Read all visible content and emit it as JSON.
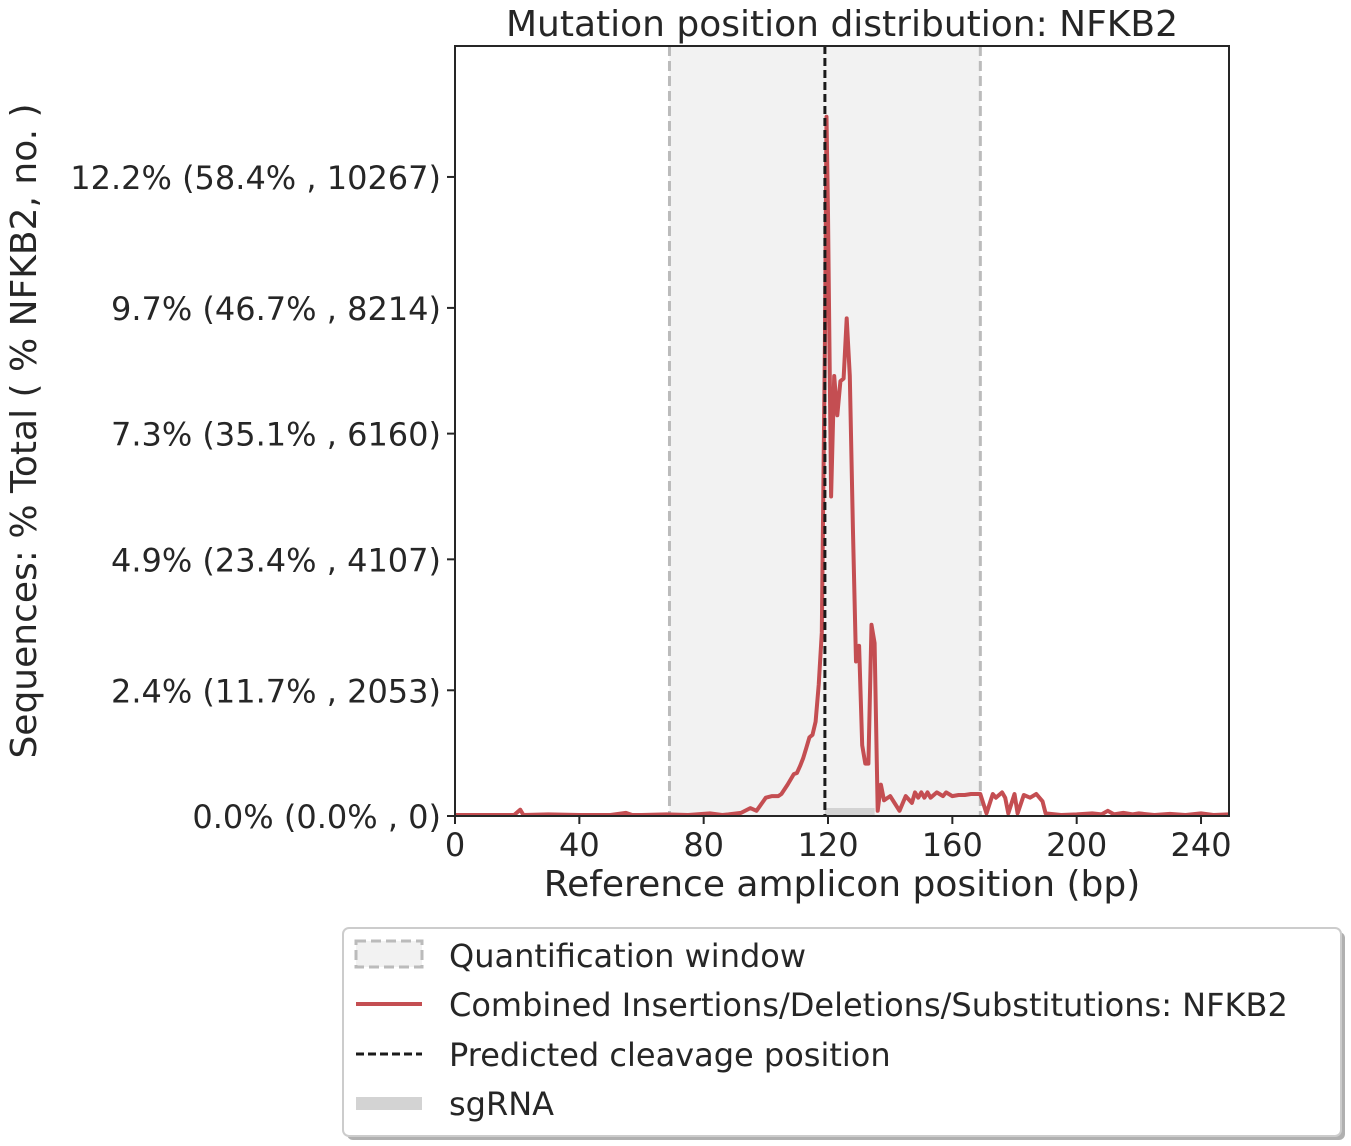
{
  "chart_data": {
    "type": "line",
    "title": "Mutation position distribution: NFKB2",
    "xlabel": "Reference amplicon position (bp)",
    "ylabel": "Sequences: % Total ( % NFKB2, no. )",
    "xlim": [
      0,
      249
    ],
    "ylim": [
      0,
      14.7
    ],
    "xticks": [
      0,
      40,
      80,
      120,
      160,
      200,
      240
    ],
    "yticks": [
      {
        "value": 0.0,
        "label": "0.0% (0.0% , 0)"
      },
      {
        "value": 2.4,
        "label": "2.4% (11.7% , 2053)"
      },
      {
        "value": 4.9,
        "label": "4.9% (23.4% , 4107)"
      },
      {
        "value": 7.3,
        "label": "7.3% (35.1% , 6160)"
      },
      {
        "value": 9.7,
        "label": "9.7% (46.7% , 8214)"
      },
      {
        "value": 12.2,
        "label": "12.2% (58.4% , 10267)"
      }
    ],
    "quantification_window": [
      69,
      169
    ],
    "cleavage_position": 119,
    "sgrna": [
      119,
      135
    ],
    "series": [
      {
        "name": "Combined Insertions/Deletions/Substitutions: NFKB2",
        "color": "#c44e52",
        "points": [
          [
            0,
            0.02
          ],
          [
            10,
            0.02
          ],
          [
            19,
            0.02
          ],
          [
            21,
            0.12
          ],
          [
            22,
            0.02
          ],
          [
            30,
            0.03
          ],
          [
            40,
            0.02
          ],
          [
            50,
            0.02
          ],
          [
            55,
            0.06
          ],
          [
            57,
            0.02
          ],
          [
            60,
            0.02
          ],
          [
            68,
            0.03
          ],
          [
            75,
            0.02
          ],
          [
            82,
            0.05
          ],
          [
            86,
            0.02
          ],
          [
            88,
            0.03
          ],
          [
            92,
            0.06
          ],
          [
            95,
            0.15
          ],
          [
            97,
            0.1
          ],
          [
            100,
            0.35
          ],
          [
            102,
            0.38
          ],
          [
            104,
            0.38
          ],
          [
            105,
            0.42
          ],
          [
            107,
            0.6
          ],
          [
            109,
            0.8
          ],
          [
            110,
            0.82
          ],
          [
            111,
            0.95
          ],
          [
            112,
            1.1
          ],
          [
            113,
            1.3
          ],
          [
            114,
            1.5
          ],
          [
            115,
            1.55
          ],
          [
            116,
            1.8
          ],
          [
            117,
            2.5
          ],
          [
            118,
            3.5
          ],
          [
            119,
            9.0
          ],
          [
            119.5,
            13.35
          ],
          [
            120,
            11.5
          ],
          [
            121,
            6.1
          ],
          [
            122,
            8.4
          ],
          [
            123,
            7.65
          ],
          [
            124,
            8.3
          ],
          [
            125,
            8.35
          ],
          [
            126,
            9.5
          ],
          [
            127,
            8.4
          ],
          [
            128,
            5.5
          ],
          [
            129,
            2.95
          ],
          [
            130,
            3.25
          ],
          [
            131,
            1.35
          ],
          [
            132,
            1.0
          ],
          [
            133,
            1.0
          ],
          [
            134,
            3.65
          ],
          [
            135,
            3.3
          ],
          [
            136,
            0.1
          ],
          [
            137,
            0.6
          ],
          [
            138,
            0.3
          ],
          [
            140,
            0.38
          ],
          [
            143,
            0.1
          ],
          [
            145,
            0.38
          ],
          [
            147,
            0.25
          ],
          [
            148,
            0.45
          ],
          [
            149,
            0.35
          ],
          [
            150,
            0.45
          ],
          [
            151,
            0.35
          ],
          [
            152,
            0.45
          ],
          [
            153,
            0.35
          ],
          [
            155,
            0.45
          ],
          [
            157,
            0.38
          ],
          [
            158,
            0.45
          ],
          [
            160,
            0.38
          ],
          [
            162,
            0.4
          ],
          [
            164,
            0.4
          ],
          [
            166,
            0.42
          ],
          [
            168,
            0.42
          ],
          [
            169,
            0.42
          ],
          [
            171,
            0.05
          ],
          [
            173,
            0.42
          ],
          [
            174,
            0.35
          ],
          [
            176,
            0.45
          ],
          [
            177,
            0.35
          ],
          [
            178,
            0.05
          ],
          [
            180,
            0.42
          ],
          [
            181,
            0.05
          ],
          [
            183,
            0.4
          ],
          [
            185,
            0.35
          ],
          [
            187,
            0.42
          ],
          [
            189,
            0.28
          ],
          [
            190,
            0.05
          ],
          [
            195,
            0.02
          ],
          [
            200,
            0.03
          ],
          [
            205,
            0.05
          ],
          [
            208,
            0.03
          ],
          [
            210,
            0.1
          ],
          [
            212,
            0.03
          ],
          [
            215,
            0.06
          ],
          [
            218,
            0.03
          ],
          [
            220,
            0.05
          ],
          [
            225,
            0.02
          ],
          [
            230,
            0.04
          ],
          [
            235,
            0.02
          ],
          [
            240,
            0.05
          ],
          [
            244,
            0.02
          ],
          [
            249,
            0.03
          ]
        ]
      }
    ],
    "legend": {
      "placement": "bottom-right",
      "entries": [
        "Quantification window",
        "Combined Insertions/Deletions/Substitutions: NFKB2",
        "Predicted cleavage position",
        "sgRNA"
      ]
    },
    "colors": {
      "series": "#c44e52",
      "window_fill": "#f2f2f2",
      "window_edge": "#bbbbbb",
      "cleavage": "#1a1a1a",
      "sgrna": "#d3d3d3"
    }
  }
}
